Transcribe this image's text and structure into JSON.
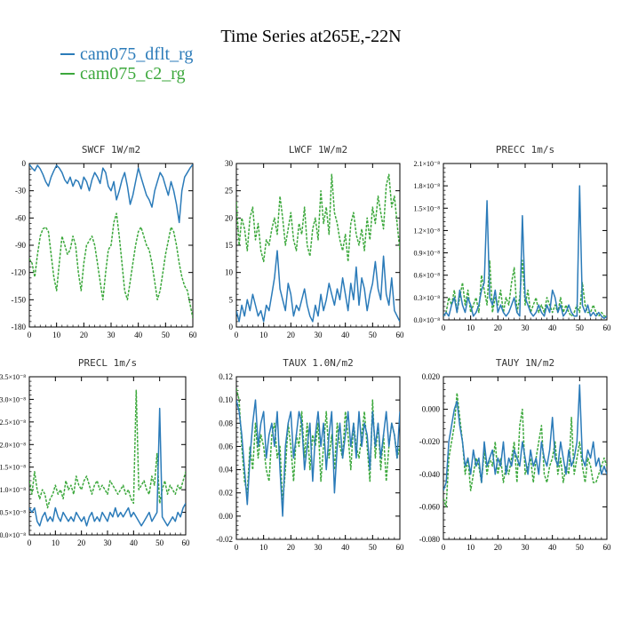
{
  "figure": {
    "title": "Time Series at265E,-22N",
    "legend": [
      {
        "label": "cam075_dflt_rg",
        "color": "#2b7bb9",
        "dash": false
      },
      {
        "label": "cam075_c2_rg",
        "color": "#3ca83c",
        "dash": true
      }
    ]
  },
  "chart_data": [
    {
      "type": "line",
      "title": "SWCF   1W/m2",
      "xlim": [
        0,
        60
      ],
      "ylim": [
        -180,
        0
      ],
      "xticks": [
        "0",
        "10",
        "20",
        "30",
        "40",
        "50",
        "60"
      ],
      "yticks": [
        "-180",
        "-150",
        "-120",
        "-90",
        "-60",
        "-30",
        "0"
      ],
      "series": [
        {
          "name": "cam075_dflt_rg",
          "values": [
            -1,
            -5,
            -8,
            -2,
            -6,
            -12,
            -20,
            -25,
            -15,
            -8,
            -2,
            -5,
            -10,
            -18,
            -22,
            -15,
            -25,
            -18,
            -20,
            -28,
            -15,
            -20,
            -30,
            -18,
            -10,
            -15,
            -22,
            -5,
            -10,
            -25,
            -30,
            -20,
            -40,
            -30,
            -18,
            -10,
            -25,
            -45,
            -35,
            -20,
            -5,
            -15,
            -25,
            -35,
            -40,
            -48,
            -30,
            -20,
            -10,
            -15,
            -25,
            -35,
            -20,
            -30,
            -45,
            -65,
            -30,
            -15,
            -10,
            -5,
            -1
          ]
        },
        {
          "name": "cam075_c2_rg",
          "values": [
            -105,
            -110,
            -125,
            -100,
            -80,
            -72,
            -70,
            -75,
            -100,
            -125,
            -140,
            -110,
            -80,
            -90,
            -100,
            -95,
            -80,
            -90,
            -120,
            -140,
            -110,
            -90,
            -85,
            -80,
            -90,
            -110,
            -130,
            -150,
            -120,
            -95,
            -90,
            -65,
            -55,
            -80,
            -110,
            -140,
            -150,
            -130,
            -110,
            -90,
            -75,
            -70,
            -80,
            -90,
            -95,
            -110,
            -130,
            -150,
            -140,
            -120,
            -100,
            -85,
            -70,
            -75,
            -90,
            -110,
            -125,
            -135,
            -140,
            -155,
            -170
          ]
        }
      ]
    },
    {
      "type": "line",
      "title": "LWCF   1W/m2",
      "xlim": [
        0,
        60
      ],
      "ylim": [
        0,
        30
      ],
      "xticks": [
        "0",
        "10",
        "20",
        "30",
        "40",
        "50",
        "60"
      ],
      "yticks": [
        "0",
        "5",
        "10",
        "15",
        "20",
        "25",
        "30"
      ],
      "series": [
        {
          "name": "cam075_dflt_rg",
          "values": [
            3,
            1,
            4,
            2,
            5,
            3,
            6,
            4,
            2,
            3,
            1,
            4,
            3,
            6,
            9,
            14,
            7,
            5,
            3,
            8,
            6,
            2,
            4,
            3,
            5,
            7,
            4,
            2,
            1,
            4,
            2,
            6,
            3,
            5,
            8,
            6,
            4,
            7,
            5,
            9,
            6,
            3,
            8,
            5,
            11,
            4,
            9,
            7,
            3,
            6,
            8,
            12,
            7,
            5,
            13,
            6,
            4,
            9,
            3,
            2,
            1
          ]
        },
        {
          "name": "cam075_c2_rg",
          "values": [
            23,
            15,
            20,
            18,
            14,
            20,
            22,
            16,
            19,
            14,
            12,
            16,
            15,
            18,
            20,
            17,
            24,
            20,
            15,
            18,
            21,
            16,
            14,
            19,
            17,
            22,
            15,
            13,
            18,
            20,
            16,
            25,
            19,
            22,
            17,
            28,
            21,
            19,
            16,
            14,
            17,
            12,
            19,
            21,
            17,
            15,
            18,
            14,
            20,
            16,
            22,
            19,
            24,
            21,
            18,
            26,
            28,
            22,
            24,
            19,
            14
          ]
        }
      ]
    },
    {
      "type": "line",
      "title": "PRECC   1m/s",
      "xlim": [
        0,
        60
      ],
      "ylim": [
        0,
        2.1
      ],
      "xticks": [
        "0",
        "10",
        "20",
        "30",
        "40",
        "50",
        "60"
      ],
      "yticks": [
        "0.0×10⁻⁸",
        "0.3×10⁻⁸",
        "0.6×10⁻⁸",
        "0.9×10⁻⁸",
        "1.2×10⁻⁸",
        "1.5×10⁻⁸",
        "1.8×10⁻⁸",
        "2.1×10⁻⁸"
      ],
      "series": [
        {
          "name": "cam075_dflt_rg",
          "values": [
            0.05,
            0.1,
            0.05,
            0.2,
            0.3,
            0.1,
            0.4,
            0.2,
            0.1,
            0.3,
            0.2,
            0.05,
            0.1,
            0.2,
            0.4,
            0.5,
            1.6,
            0.3,
            0.2,
            0.4,
            0.1,
            0.2,
            0.1,
            0.05,
            0.1,
            0.2,
            0.3,
            0.1,
            0.05,
            1.4,
            0.3,
            0.2,
            0.1,
            0.05,
            0.1,
            0.2,
            0.1,
            0.05,
            0.2,
            0.1,
            0.4,
            0.3,
            0.1,
            0.2,
            0.05,
            0.1,
            0.2,
            0.1,
            0.05,
            0.05,
            1.8,
            0.2,
            0.1,
            0.2,
            0.05,
            0.1,
            0.05,
            0.1,
            0.05,
            0.02,
            0.05
          ]
        },
        {
          "name": "cam075_c2_rg",
          "values": [
            0.05,
            0.1,
            0.3,
            0.2,
            0.4,
            0.1,
            0.3,
            0.5,
            0.2,
            0.4,
            0.1,
            0.2,
            0.3,
            0.1,
            0.6,
            0.4,
            0.2,
            0.8,
            0.1,
            0.3,
            0.2,
            0.4,
            0.1,
            0.3,
            0.2,
            0.5,
            0.7,
            0.1,
            0.3,
            0.8,
            0.2,
            0.4,
            0.1,
            0.2,
            0.3,
            0.1,
            0.2,
            0.1,
            0.3,
            0.2,
            0.1,
            0.2,
            0.1,
            0.3,
            0.1,
            0.2,
            0.1,
            0.05,
            0.1,
            0.2,
            0.1,
            0.5,
            0.2,
            0.1,
            0.1,
            0.2,
            0.1,
            0.05,
            0.1,
            0.05,
            0.05
          ]
        }
      ]
    },
    {
      "type": "line",
      "title": "PRECL   1m/s",
      "xlim": [
        0,
        60
      ],
      "ylim": [
        0,
        3.5
      ],
      "xticks": [
        "0",
        "10",
        "20",
        "30",
        "40",
        "50",
        "60"
      ],
      "yticks": [
        "0.0×10⁻⁸",
        "0.5×10⁻⁸",
        "1.0×10⁻⁸",
        "1.5×10⁻⁸",
        "2.0×10⁻⁸",
        "2.5×10⁻⁸",
        "3.0×10⁻⁸",
        "3.5×10⁻⁸"
      ],
      "series": [
        {
          "name": "cam075_dflt_rg",
          "values": [
            0.6,
            0.5,
            0.6,
            0.3,
            0.2,
            0.4,
            0.5,
            0.3,
            0.4,
            0.3,
            0.6,
            0.4,
            0.3,
            0.5,
            0.4,
            0.3,
            0.4,
            0.3,
            0.5,
            0.4,
            0.3,
            0.4,
            0.2,
            0.4,
            0.5,
            0.3,
            0.4,
            0.3,
            0.5,
            0.4,
            0.3,
            0.5,
            0.4,
            0.6,
            0.4,
            0.5,
            0.4,
            0.5,
            0.6,
            0.4,
            0.5,
            0.4,
            0.3,
            0.2,
            0.3,
            0.4,
            0.5,
            0.3,
            0.4,
            0.5,
            2.8,
            0.4,
            0.3,
            0.2,
            0.3,
            0.4,
            0.3,
            0.5,
            0.4,
            0.6,
            0.7
          ]
        },
        {
          "name": "cam075_c2_rg",
          "values": [
            1.2,
            0.9,
            1.4,
            1.0,
            0.8,
            1.0,
            0.9,
            0.6,
            0.8,
            0.9,
            1.1,
            0.9,
            1.0,
            0.8,
            1.2,
            1.0,
            1.1,
            0.9,
            1.3,
            1.1,
            1.0,
            1.2,
            1.3,
            1.1,
            0.9,
            1.1,
            1.2,
            1.0,
            1.1,
            1.0,
            0.9,
            1.2,
            1.1,
            1.0,
            0.9,
            1.0,
            1.1,
            0.9,
            1.0,
            0.8,
            0.7,
            3.2,
            1.0,
            1.1,
            1.2,
            1.0,
            0.9,
            1.3,
            1.1,
            1.8,
            0.7,
            1.0,
            1.2,
            0.9,
            1.1,
            1.0,
            0.9,
            1.1,
            1.0,
            1.2,
            1.4
          ]
        }
      ]
    },
    {
      "type": "line",
      "title": "TAUX   1.0N/m2",
      "xlim": [
        0,
        60
      ],
      "ylim": [
        -0.02,
        0.12
      ],
      "xticks": [
        "0",
        "10",
        "20",
        "30",
        "40",
        "50",
        "60"
      ],
      "yticks": [
        "-0.02",
        "0.00",
        "0.02",
        "0.04",
        "0.06",
        "0.08",
        "0.10",
        "0.12"
      ],
      "series": [
        {
          "name": "cam075_dflt_rg",
          "values": [
            0.1,
            0.09,
            0.07,
            0.04,
            0.01,
            0.05,
            0.08,
            0.1,
            0.06,
            0.08,
            0.09,
            0.05,
            0.07,
            0.08,
            0.06,
            0.09,
            0.04,
            0.0,
            0.06,
            0.08,
            0.09,
            0.05,
            0.07,
            0.09,
            0.08,
            0.04,
            0.06,
            0.08,
            0.03,
            0.07,
            0.09,
            0.06,
            0.08,
            0.04,
            0.07,
            0.09,
            0.02,
            0.06,
            0.08,
            0.05,
            0.07,
            0.09,
            0.06,
            0.08,
            0.05,
            0.09,
            0.06,
            0.08,
            0.07,
            0.04,
            0.09,
            0.06,
            0.08,
            0.05,
            0.07,
            0.09,
            0.06,
            0.08,
            0.07,
            0.05,
            0.09
          ]
        },
        {
          "name": "cam075_c2_rg",
          "values": [
            0.11,
            0.1,
            0.06,
            0.03,
            0.02,
            0.06,
            0.04,
            0.08,
            0.05,
            0.07,
            0.06,
            0.04,
            0.03,
            0.07,
            0.08,
            0.05,
            0.06,
            0.01,
            0.04,
            0.08,
            0.06,
            0.03,
            0.07,
            0.06,
            0.09,
            0.05,
            0.08,
            0.04,
            0.07,
            0.06,
            0.08,
            0.03,
            0.06,
            0.09,
            0.05,
            0.07,
            0.04,
            0.08,
            0.06,
            0.05,
            0.09,
            0.07,
            0.04,
            0.08,
            0.06,
            0.05,
            0.07,
            0.09,
            0.06,
            0.03,
            0.1,
            0.05,
            0.08,
            0.04,
            0.07,
            0.03,
            0.06,
            0.08,
            0.07,
            0.05,
            0.06
          ]
        }
      ]
    },
    {
      "type": "line",
      "title": "TAUY   1N/m2",
      "xlim": [
        0,
        60
      ],
      "ylim": [
        -0.08,
        0.02
      ],
      "xticks": [
        "0",
        "10",
        "20",
        "30",
        "40",
        "50",
        "60"
      ],
      "yticks": [
        "-0.080",
        "-0.060",
        "-0.040",
        "-0.020",
        "0.000",
        "0.020"
      ],
      "series": [
        {
          "name": "cam075_dflt_rg",
          "values": [
            -0.05,
            -0.045,
            -0.02,
            -0.01,
            0.0,
            0.005,
            -0.01,
            -0.02,
            -0.035,
            -0.03,
            -0.04,
            -0.025,
            -0.035,
            -0.03,
            -0.045,
            -0.02,
            -0.035,
            -0.03,
            -0.025,
            -0.04,
            -0.03,
            -0.035,
            -0.02,
            -0.04,
            -0.03,
            -0.035,
            -0.025,
            -0.03,
            -0.035,
            -0.02,
            -0.03,
            -0.04,
            -0.025,
            -0.035,
            -0.03,
            -0.04,
            -0.02,
            -0.03,
            -0.035,
            -0.025,
            -0.005,
            -0.03,
            -0.035,
            -0.02,
            -0.03,
            -0.04,
            -0.025,
            -0.035,
            -0.03,
            -0.02,
            0.015,
            -0.03,
            -0.035,
            -0.025,
            -0.03,
            -0.02,
            -0.035,
            -0.03,
            -0.04,
            -0.035,
            -0.04
          ]
        },
        {
          "name": "cam075_c2_rg",
          "values": [
            -0.055,
            -0.06,
            -0.03,
            -0.02,
            -0.01,
            0.01,
            -0.005,
            -0.02,
            -0.04,
            -0.03,
            -0.05,
            -0.04,
            -0.03,
            -0.035,
            -0.045,
            -0.025,
            -0.04,
            -0.03,
            -0.035,
            -0.02,
            -0.04,
            -0.03,
            -0.045,
            -0.035,
            -0.04,
            -0.03,
            -0.02,
            -0.045,
            -0.01,
            0.0,
            -0.04,
            -0.035,
            -0.03,
            -0.045,
            -0.03,
            -0.02,
            -0.01,
            -0.04,
            -0.045,
            -0.035,
            -0.03,
            -0.02,
            -0.04,
            -0.03,
            -0.045,
            -0.035,
            -0.04,
            -0.005,
            -0.04,
            -0.03,
            -0.02,
            -0.035,
            -0.045,
            -0.03,
            -0.035,
            -0.045,
            -0.045,
            -0.04,
            -0.035,
            -0.03,
            -0.035
          ]
        }
      ]
    }
  ]
}
